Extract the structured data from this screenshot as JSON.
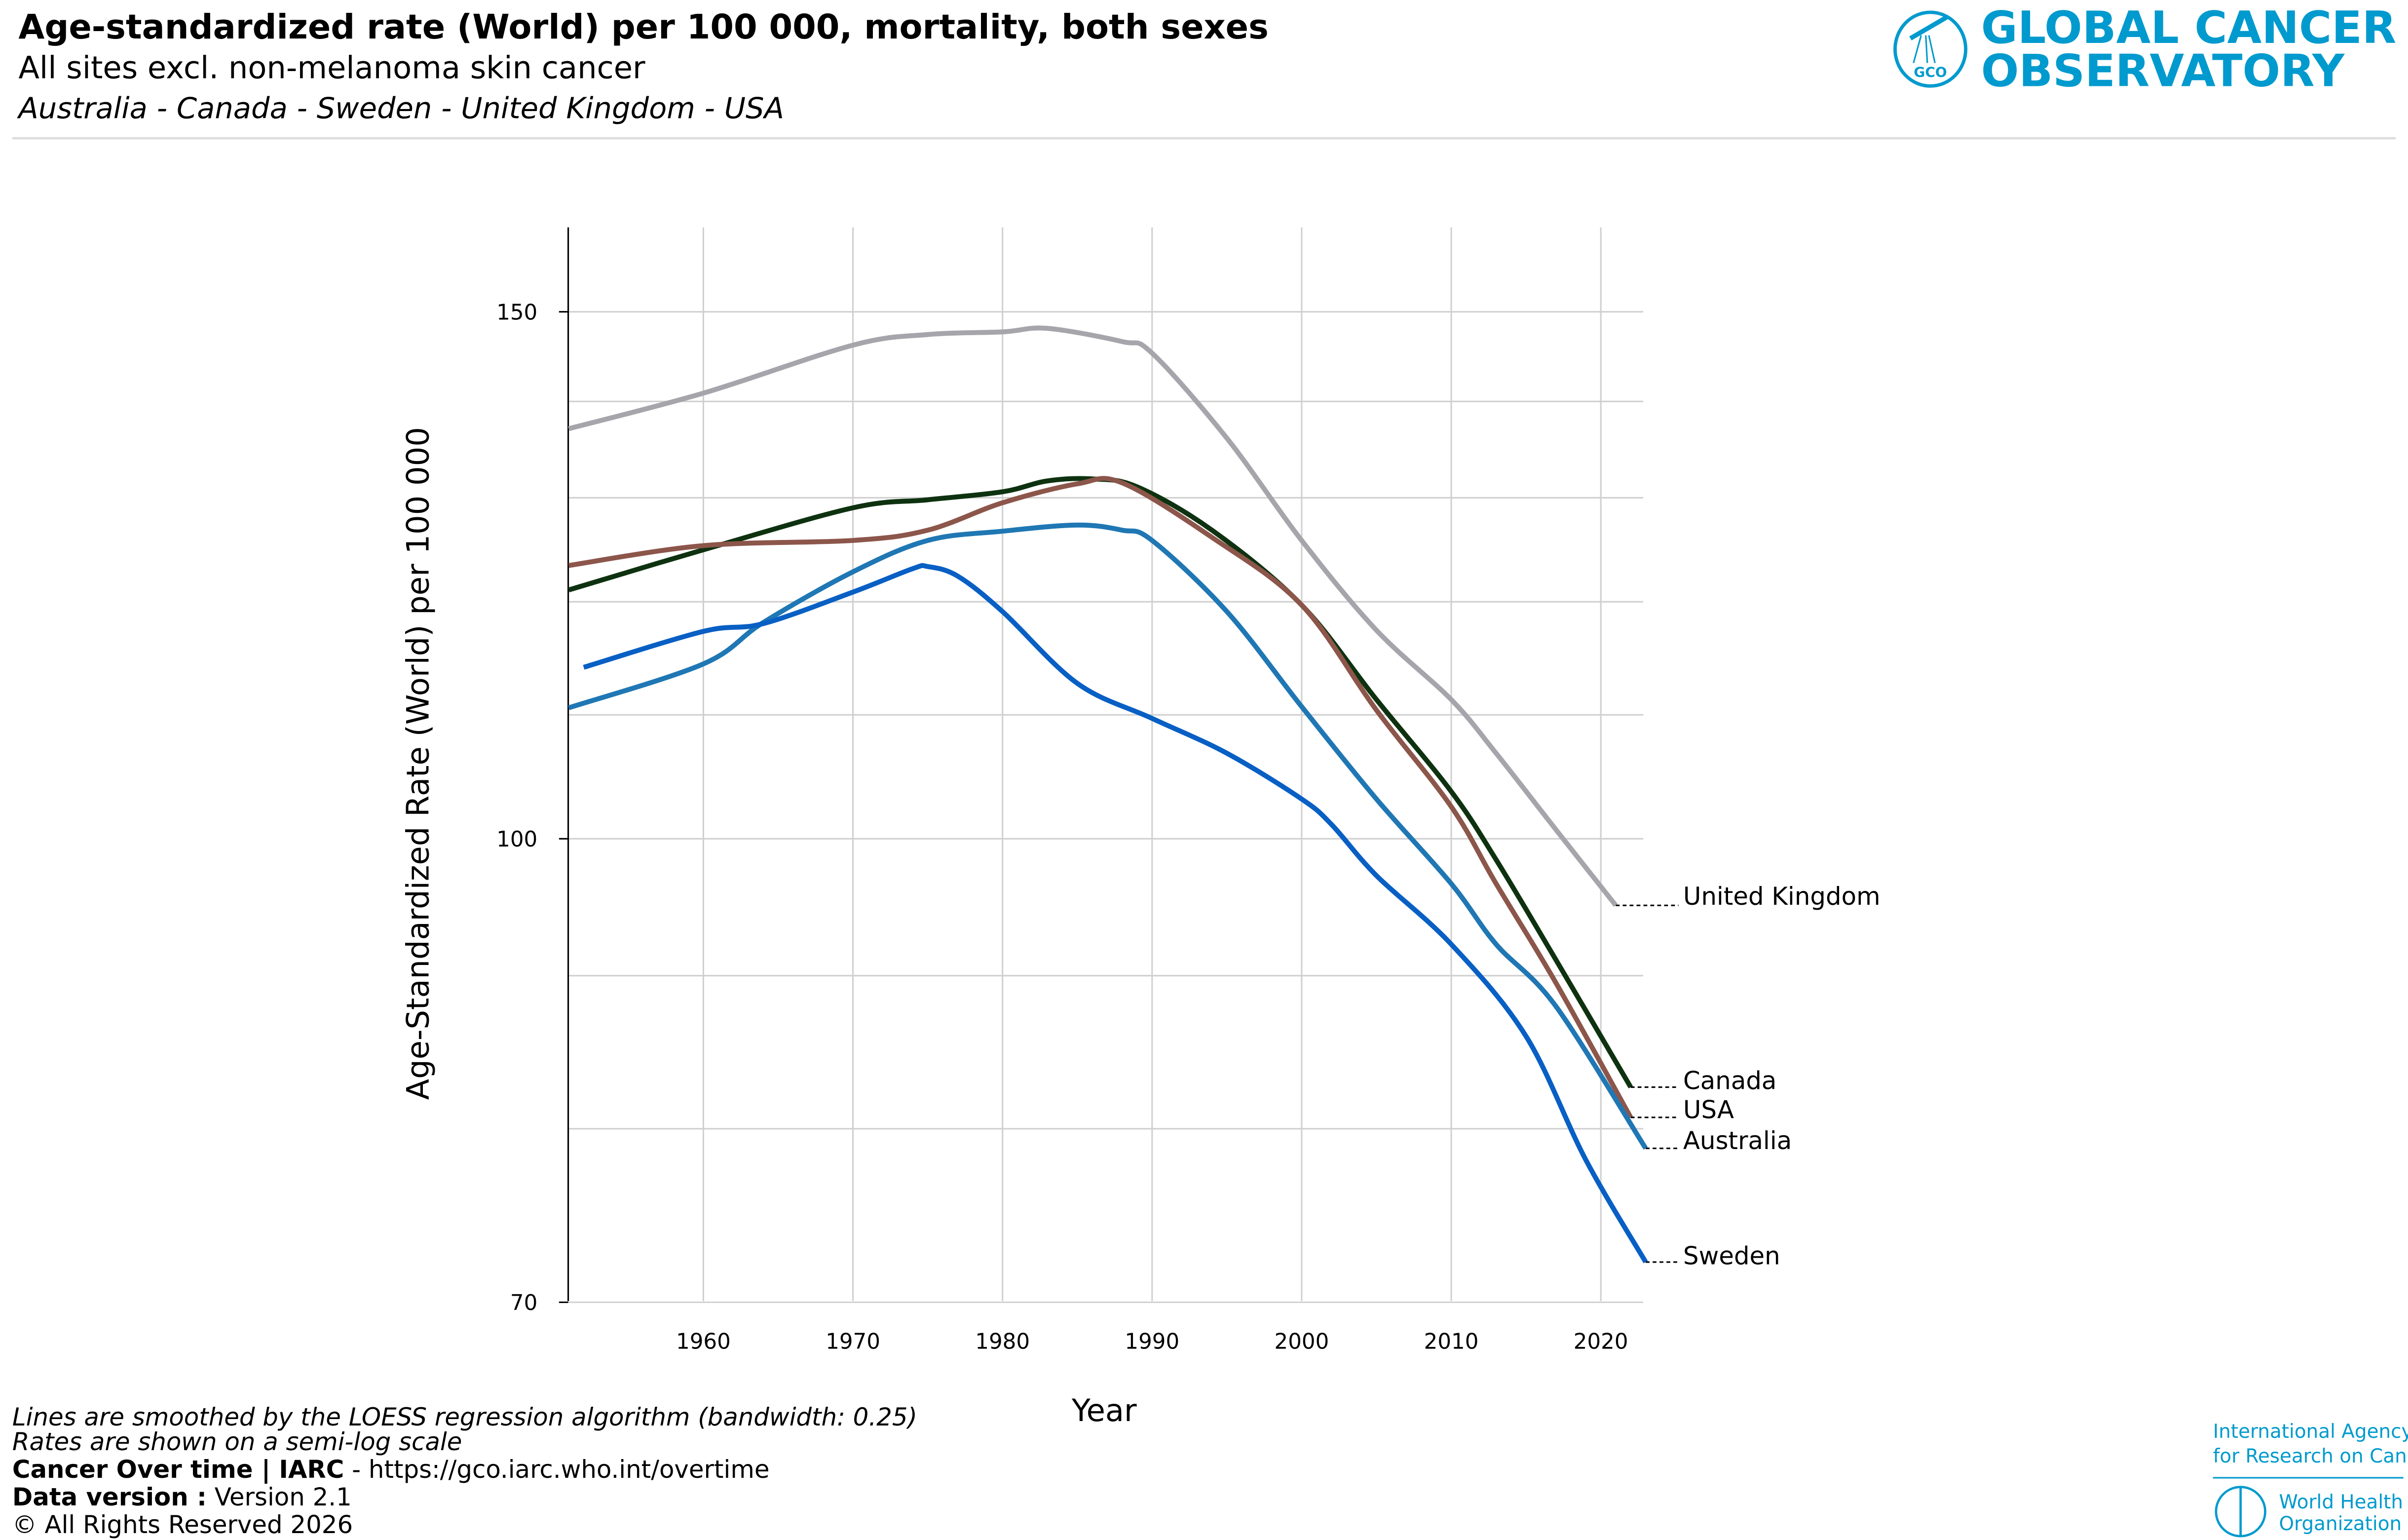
{
  "header": {
    "title": "Age-standardized rate (World) per 100 000, mortality, both sexes",
    "subtitle": "All sites excl. non-melanoma skin cancer",
    "countries": "Australia - Canada - Sweden - United Kingdom - USA"
  },
  "logo": {
    "line1": "GLOBAL CANCER",
    "line2": "OBSERVATORY",
    "badge": "GCO",
    "color": "#009ace"
  },
  "chart_data": {
    "type": "line",
    "xlabel": "Year",
    "ylabel": "Age-Standardized Rate (World) per 100 000",
    "yscale": "log",
    "xlim": [
      1951,
      2023
    ],
    "ylim": [
      70,
      160
    ],
    "xticks": [
      1960,
      1970,
      1980,
      1990,
      2000,
      2010,
      2020
    ],
    "yticks": [
      70,
      100,
      150
    ],
    "ygrid": [
      70,
      80,
      90,
      100,
      110,
      120,
      130,
      140,
      150
    ],
    "grid": true,
    "legend": "direct labels at line ends (right)",
    "series": [
      {
        "name": "United Kingdom",
        "color": "#a5a5ab",
        "x": [
          1951,
          1960,
          1970,
          1975,
          1980,
          1983,
          1988,
          1990,
          1995,
          2000,
          2005,
          2010,
          2013,
          2017,
          2021
        ],
        "y": [
          137.1,
          140.9,
          146.2,
          147.4,
          147.7,
          148.1,
          146.6,
          145.3,
          136.1,
          125.8,
          117.4,
          111.3,
          106.8,
          100.7,
          95.0
        ]
      },
      {
        "name": "Canada",
        "color": "#0e3210",
        "x": [
          1951,
          1960,
          1970,
          1975,
          1980,
          1983,
          1986,
          1989,
          1994,
          2000,
          2005,
          2010,
          2013,
          2017,
          2022
        ],
        "y": [
          121.1,
          124.9,
          129.0,
          129.8,
          130.6,
          131.7,
          131.9,
          131.1,
          126.8,
          119.7,
          111.3,
          103.7,
          98.4,
          91.1,
          82.6
        ]
      },
      {
        "name": "USA",
        "color": "#8c564b",
        "x": [
          1951,
          1960,
          1970,
          1975,
          1980,
          1985,
          1988,
          1994,
          2000,
          2005,
          2010,
          2013,
          2017,
          2022
        ],
        "y": [
          123.4,
          125.3,
          125.8,
          126.8,
          129.5,
          131.4,
          131.5,
          126.1,
          119.7,
          110.4,
          102.5,
          96.6,
          89.5,
          80.7
        ]
      },
      {
        "name": "Australia",
        "color": "#1f77b4",
        "x": [
          1951,
          1960,
          1964,
          1970,
          1975,
          1980,
          1985,
          1988,
          1990,
          1995,
          2000,
          2005,
          2010,
          2013,
          2017,
          2023
        ],
        "y": [
          110.6,
          114.4,
          118.1,
          122.8,
          125.8,
          126.7,
          127.3,
          126.8,
          125.8,
          119.1,
          110.7,
          103.1,
          96.6,
          92.2,
          87.9,
          78.8
        ]
      },
      {
        "name": "Sweden",
        "color": "#085fc4",
        "x": [
          1952,
          1960,
          1964,
          1970,
          1974,
          1975,
          1977,
          1980,
          1985,
          1990,
          1995,
          2000,
          2002,
          2005,
          2010,
          2015,
          2019,
          2023
        ],
        "y": [
          114.1,
          117.3,
          118.0,
          120.9,
          123.1,
          123.3,
          122.4,
          119.1,
          112.7,
          109.7,
          106.8,
          103.1,
          101.1,
          97.2,
          92.2,
          85.9,
          78.1,
          72.2
        ]
      }
    ]
  },
  "footer": {
    "note1": "Lines are smoothed by the LOESS regression algorithm (bandwidth: 0.25)",
    "note2": "Rates are shown on a semi-log scale",
    "source_bold": "Cancer Over time | IARC",
    "source_rest": " - https://gco.iarc.who.int/overtime",
    "version_bold": "Data version :",
    "version_rest": " Version 2.1",
    "rights": "© All Rights Reserved 2026"
  },
  "partners": {
    "iarc1": "International Agency",
    "iarc2": "for Research on Cancer",
    "who1": "World Health",
    "who2": "Organization"
  }
}
